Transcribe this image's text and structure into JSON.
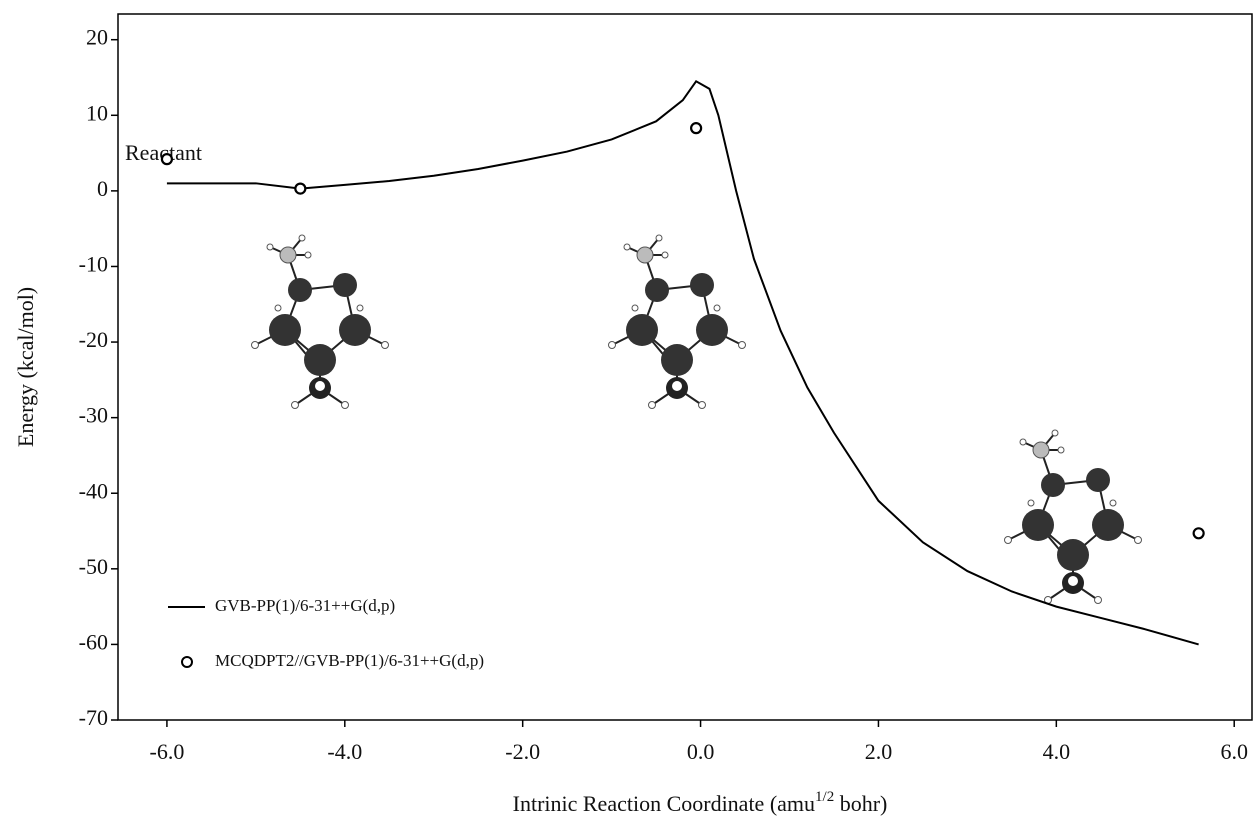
{
  "chart_data": {
    "type": "line",
    "x_label": [
      "Intrinic Reaction Coordinate (amu",
      "1/2",
      " bohr)"
    ],
    "y_label": "Energy (kcal/mol)",
    "annotations": [
      "Reactant"
    ],
    "xlim": [
      -6.55,
      6.2
    ],
    "ylim": [
      -70,
      23.4
    ],
    "xticks": [
      {
        "value": -6,
        "label": "-6.0"
      },
      {
        "value": -4,
        "label": "-4.0"
      },
      {
        "value": -2,
        "label": "-2.0"
      },
      {
        "value": 0,
        "label": "0.0"
      },
      {
        "value": 2,
        "label": "2.0"
      },
      {
        "value": 4,
        "label": "4.0"
      },
      {
        "value": 6,
        "label": "6.0"
      }
    ],
    "yticks": [
      20,
      10,
      0,
      -10,
      -20,
      -30,
      -40,
      -50,
      -60,
      -70
    ],
    "grid": false,
    "series": [
      {
        "name": "GVB-PP(1)/6-31++G(d,p)",
        "color": "#000000",
        "style": "line",
        "x": [
          -6.0,
          -5.5,
          -5.0,
          -4.5,
          -4.0,
          -3.5,
          -3.0,
          -2.5,
          -2.0,
          -1.5,
          -1.0,
          -0.5,
          -0.2,
          -0.05,
          0.1,
          0.2,
          0.4,
          0.6,
          0.9,
          1.2,
          1.5,
          2.0,
          2.5,
          3.0,
          3.5,
          4.0,
          4.5,
          5.0,
          5.6
        ],
        "values": [
          1,
          1,
          1,
          0.3,
          0.8,
          1.3,
          2,
          2.9,
          4,
          5.2,
          6.8,
          9.2,
          12,
          14.5,
          13.5,
          10,
          0,
          -9,
          -18.5,
          -26,
          -32,
          -41,
          -46.5,
          -50.3,
          -53,
          -55,
          -56.5,
          -58,
          -60
        ]
      },
      {
        "name": "MCQDPT2//GVB-PP(1)/6-31++G(d,p)",
        "color": "#000000",
        "style": "markers",
        "x": [
          -6.0,
          -4.5,
          -0.05,
          5.6
        ],
        "values": [
          4.2,
          0.3,
          8.3,
          -45.3
        ]
      }
    ]
  }
}
